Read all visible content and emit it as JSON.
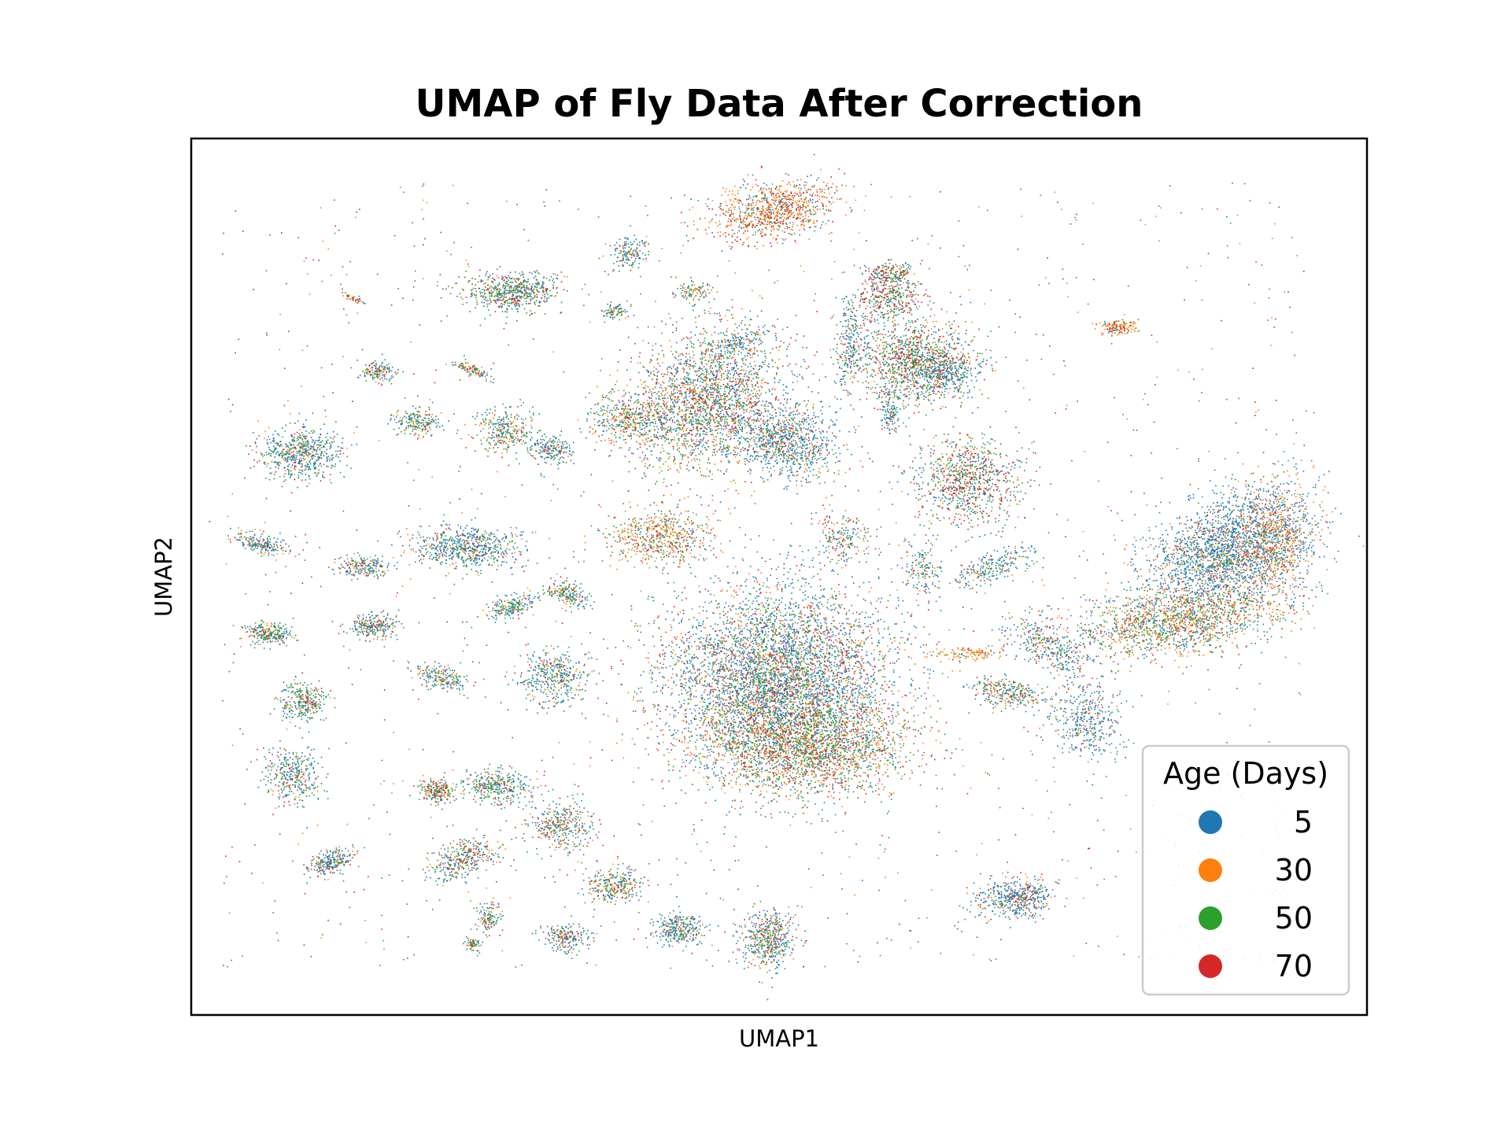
{
  "chart_data": {
    "type": "scatter",
    "title": "UMAP of Fly Data After Correction",
    "xlabel": "UMAP1",
    "ylabel": "UMAP2",
    "xticks": [],
    "yticks": [],
    "grid": false,
    "legend": {
      "title": "Age (Days)",
      "placement": "lower-right",
      "entries": [
        {
          "label": "5",
          "color": "#1f77b4"
        },
        {
          "label": "30",
          "color": "#ff7f0e"
        },
        {
          "label": "50",
          "color": "#2ca02c"
        },
        {
          "label": "70",
          "color": "#d62728"
        }
      ]
    },
    "series": [
      {
        "age": 5,
        "color": "#1f77b4"
      },
      {
        "age": 30,
        "color": "#ff7f0e"
      },
      {
        "age": 50,
        "color": "#2ca02c"
      },
      {
        "age": 70,
        "color": "#d62728"
      }
    ]
  }
}
